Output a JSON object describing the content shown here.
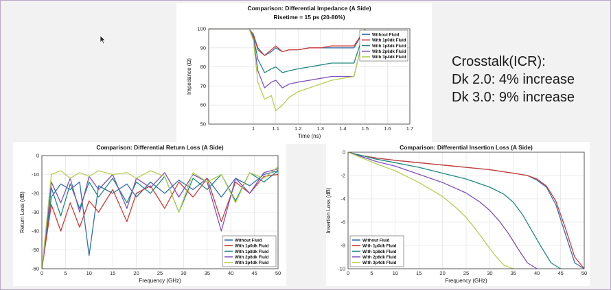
{
  "crosstalk": {
    "heading": "Crosstalk(ICR):",
    "lines": [
      "Dk 2.0: 4% increase",
      "Dk 3.0: 9% increase"
    ]
  },
  "chart_data": [
    {
      "id": "impedance",
      "type": "line",
      "title": "Comparison: Differential Impedance (A Side)",
      "subtitle": "Risetime = 15 ps (20-80%)",
      "xlabel": "Time (ns)",
      "ylabel": "Impedance (Ω)",
      "xlim": [
        0.8,
        1.7
      ],
      "ylim": [
        50,
        100
      ],
      "xticks": [
        "1",
        "1.1",
        "1.2",
        "1.3",
        "1.4",
        "1.5",
        "1.6",
        "1.7"
      ],
      "xtick_values": [
        1,
        1.1,
        1.2,
        1.3,
        1.4,
        1.5,
        1.6,
        1.7
      ],
      "yticks": [
        "50",
        "60",
        "70",
        "80",
        "90",
        "100"
      ],
      "ytick_values": [
        50,
        60,
        70,
        80,
        90,
        100
      ],
      "grid": true,
      "legend_position": "top-right",
      "series": [
        {
          "name": "Without Fluid",
          "color": "#2f6fb0",
          "x": [
            0.8,
            0.98,
            1.0,
            1.02,
            1.05,
            1.08,
            1.1,
            1.13,
            1.16,
            1.2,
            1.25,
            1.3,
            1.35,
            1.4,
            1.45,
            1.5,
            1.55,
            1.6
          ],
          "y": [
            100,
            100,
            97,
            90,
            86,
            88,
            90,
            88,
            89,
            89,
            90,
            90,
            90,
            90,
            90,
            100,
            101,
            101
          ]
        },
        {
          "name": "With 1p0dk Fluid",
          "color": "#d23b34",
          "x": [
            0.8,
            0.98,
            1.0,
            1.02,
            1.05,
            1.08,
            1.1,
            1.13,
            1.16,
            1.2,
            1.25,
            1.3,
            1.35,
            1.4,
            1.45,
            1.5,
            1.55,
            1.6
          ],
          "y": [
            100,
            100,
            97,
            89,
            86,
            89,
            91,
            88,
            89,
            89,
            90,
            90,
            91,
            91,
            91,
            100,
            101,
            101
          ]
        },
        {
          "name": "With 1p8dk Fluid",
          "color": "#1e8a7c",
          "x": [
            0.8,
            0.98,
            1.0,
            1.02,
            1.05,
            1.08,
            1.1,
            1.13,
            1.16,
            1.2,
            1.25,
            1.3,
            1.35,
            1.4,
            1.45,
            1.5,
            1.55,
            1.6
          ],
          "y": [
            100,
            100,
            96,
            84,
            77,
            79,
            80,
            77,
            78,
            79,
            80,
            81,
            82,
            82,
            82,
            100,
            101,
            101
          ]
        },
        {
          "name": "With 2p6dk Fluid",
          "color": "#7e4fbd",
          "x": [
            0.8,
            0.98,
            1.0,
            1.02,
            1.05,
            1.08,
            1.1,
            1.13,
            1.16,
            1.2,
            1.25,
            1.3,
            1.35,
            1.4,
            1.45,
            1.5,
            1.55,
            1.6
          ],
          "y": [
            100,
            100,
            95,
            78,
            69,
            72,
            73,
            69,
            71,
            72,
            73,
            74,
            75,
            75,
            75,
            100,
            101,
            101
          ]
        },
        {
          "name": "With 3p4dk Fluid",
          "color": "#b5cf50",
          "x": [
            0.8,
            0.98,
            1.0,
            1.02,
            1.05,
            1.08,
            1.1,
            1.13,
            1.16,
            1.2,
            1.25,
            1.3,
            1.35,
            1.4,
            1.45,
            1.5,
            1.55,
            1.6
          ],
          "y": [
            100,
            100,
            94,
            72,
            63,
            65,
            57,
            60,
            64,
            67,
            69,
            71,
            73,
            74,
            75,
            100,
            101,
            101
          ]
        }
      ]
    },
    {
      "id": "return_loss",
      "type": "line",
      "title": "Comparison: Differential Return Loss (A Side)",
      "xlabel": "Frequency (GHz)",
      "ylabel": "Return Loss (dB)",
      "xlim": [
        0,
        50
      ],
      "ylim": [
        -60,
        0
      ],
      "xticks": [
        "0",
        "5",
        "10",
        "15",
        "20",
        "25",
        "30",
        "35",
        "40",
        "45",
        "50"
      ],
      "xtick_values": [
        0,
        5,
        10,
        15,
        20,
        25,
        30,
        35,
        40,
        45,
        50
      ],
      "yticks": [
        "-60",
        "-50",
        "-40",
        "-30",
        "-20",
        "-10",
        "0"
      ],
      "ytick_values": [
        -60,
        -50,
        -40,
        -30,
        -20,
        -10,
        0
      ],
      "grid": true,
      "legend_position": "bottom-right",
      "series": [
        {
          "name": "Without Fluid",
          "color": "#2f6fb0",
          "x": [
            0,
            2,
            4,
            6,
            8,
            10,
            12,
            15,
            18,
            20,
            23,
            26,
            29,
            32,
            35,
            38,
            41,
            44,
            47,
            50
          ],
          "y": [
            -60,
            -22,
            -15,
            -18,
            -14,
            -53,
            -16,
            -20,
            -15,
            -22,
            -14,
            -20,
            -13,
            -18,
            -12,
            -22,
            -12,
            -16,
            -10,
            -8
          ]
        },
        {
          "name": "With 1p0dk Fluid",
          "color": "#d23b34",
          "x": [
            0,
            2,
            4,
            6,
            8,
            10,
            12,
            15,
            18,
            20,
            23,
            26,
            29,
            32,
            35,
            38,
            41,
            44,
            47,
            50
          ],
          "y": [
            -60,
            -26,
            -40,
            -25,
            -38,
            -24,
            -30,
            -18,
            -35,
            -20,
            -16,
            -28,
            -14,
            -22,
            -12,
            -35,
            -14,
            -20,
            -11,
            -10
          ]
        },
        {
          "name": "With 1p8dk Fluid",
          "color": "#1e8a7c",
          "x": [
            0,
            2,
            4,
            6,
            8,
            10,
            12,
            15,
            18,
            20,
            23,
            26,
            29,
            32,
            35,
            38,
            41,
            44,
            47,
            50
          ],
          "y": [
            -60,
            -17,
            -32,
            -15,
            -28,
            -14,
            -22,
            -12,
            -25,
            -14,
            -20,
            -11,
            -30,
            -12,
            -18,
            -10,
            -24,
            -9,
            -14,
            -8
          ]
        },
        {
          "name": "With 2p6dk Fluid",
          "color": "#7e4fbd",
          "x": [
            0,
            2,
            4,
            6,
            8,
            10,
            12,
            15,
            18,
            20,
            23,
            26,
            29,
            32,
            35,
            38,
            41,
            44,
            47,
            50
          ],
          "y": [
            -60,
            -14,
            -25,
            -12,
            -30,
            -11,
            -18,
            -10,
            -28,
            -12,
            -17,
            -9,
            -22,
            -10,
            -14,
            -40,
            -12,
            -20,
            -9,
            -7
          ]
        },
        {
          "name": "With 3p4dk Fluid",
          "color": "#b5cf50",
          "x": [
            0,
            2,
            4,
            6,
            8,
            10,
            12,
            15,
            18,
            20,
            23,
            26,
            29,
            32,
            35,
            38,
            41,
            44,
            47,
            50
          ],
          "y": [
            -60,
            -10,
            -8,
            -12,
            -9,
            -11,
            -8,
            -10,
            -9,
            -12,
            -8,
            -11,
            -30,
            -9,
            -14,
            -10,
            -25,
            -9,
            -12,
            -6
          ]
        }
      ]
    },
    {
      "id": "insertion_loss",
      "type": "line",
      "title": "Comparison: Differential Insertion Loss (A Side)",
      "xlabel": "Frequency (GHz)",
      "ylabel": "Insertion Loss (dB)",
      "xlim": [
        0,
        50
      ],
      "ylim": [
        -10,
        0
      ],
      "xticks": [
        "0",
        "5",
        "10",
        "15",
        "20",
        "25",
        "30",
        "35",
        "40",
        "45",
        "50"
      ],
      "xtick_values": [
        0,
        5,
        10,
        15,
        20,
        25,
        30,
        35,
        40,
        45,
        50
      ],
      "yticks": [
        "-10",
        "-8",
        "-6",
        "-4",
        "-2",
        "0"
      ],
      "ytick_values": [
        -10,
        -8,
        -6,
        -4,
        -2,
        0
      ],
      "grid": true,
      "legend_position": "bottom-left",
      "series": [
        {
          "name": "Without Fluid",
          "color": "#2f6fb0",
          "x": [
            0,
            3,
            6,
            10,
            15,
            20,
            25,
            30,
            35,
            38,
            40,
            42,
            44,
            46,
            48,
            50
          ],
          "y": [
            0,
            -0.3,
            -0.5,
            -0.7,
            -0.9,
            -1.1,
            -1.3,
            -1.5,
            -1.8,
            -2.0,
            -2.4,
            -3.0,
            -4.5,
            -7.0,
            -9.5,
            -10
          ]
        },
        {
          "name": "With 1p0dk Fluid",
          "color": "#d23b34",
          "x": [
            0,
            3,
            6,
            10,
            15,
            20,
            25,
            30,
            35,
            38,
            40,
            42,
            44,
            46,
            48,
            50
          ],
          "y": [
            0,
            -0.3,
            -0.5,
            -0.7,
            -0.9,
            -1.1,
            -1.3,
            -1.5,
            -1.8,
            -2.0,
            -2.3,
            -2.9,
            -4.2,
            -6.5,
            -9.0,
            -10
          ]
        },
        {
          "name": "With 1p8dk Fluid",
          "color": "#1e8a7c",
          "x": [
            0,
            3,
            6,
            10,
            15,
            20,
            25,
            30,
            33,
            35,
            37,
            39,
            41,
            43,
            45
          ],
          "y": [
            0,
            -0.3,
            -0.6,
            -0.9,
            -1.3,
            -1.8,
            -2.3,
            -3.0,
            -3.6,
            -4.3,
            -5.4,
            -6.8,
            -8.2,
            -9.5,
            -10
          ]
        },
        {
          "name": "With 2p6dk Fluid",
          "color": "#7e4fbd",
          "x": [
            0,
            3,
            6,
            10,
            15,
            20,
            25,
            28,
            30,
            32,
            34,
            36,
            38,
            40
          ],
          "y": [
            0,
            -0.4,
            -0.8,
            -1.2,
            -1.9,
            -2.6,
            -3.5,
            -4.3,
            -5.0,
            -5.9,
            -7.0,
            -8.3,
            -9.5,
            -10
          ]
        },
        {
          "name": "With 3p4dk Fluid",
          "color": "#b5cf50",
          "x": [
            0,
            3,
            6,
            10,
            15,
            20,
            23,
            25,
            27,
            29,
            31,
            33,
            35
          ],
          "y": [
            0,
            -0.5,
            -1.0,
            -1.6,
            -2.6,
            -3.8,
            -4.8,
            -5.6,
            -6.6,
            -7.7,
            -8.8,
            -9.7,
            -10
          ]
        }
      ]
    }
  ]
}
